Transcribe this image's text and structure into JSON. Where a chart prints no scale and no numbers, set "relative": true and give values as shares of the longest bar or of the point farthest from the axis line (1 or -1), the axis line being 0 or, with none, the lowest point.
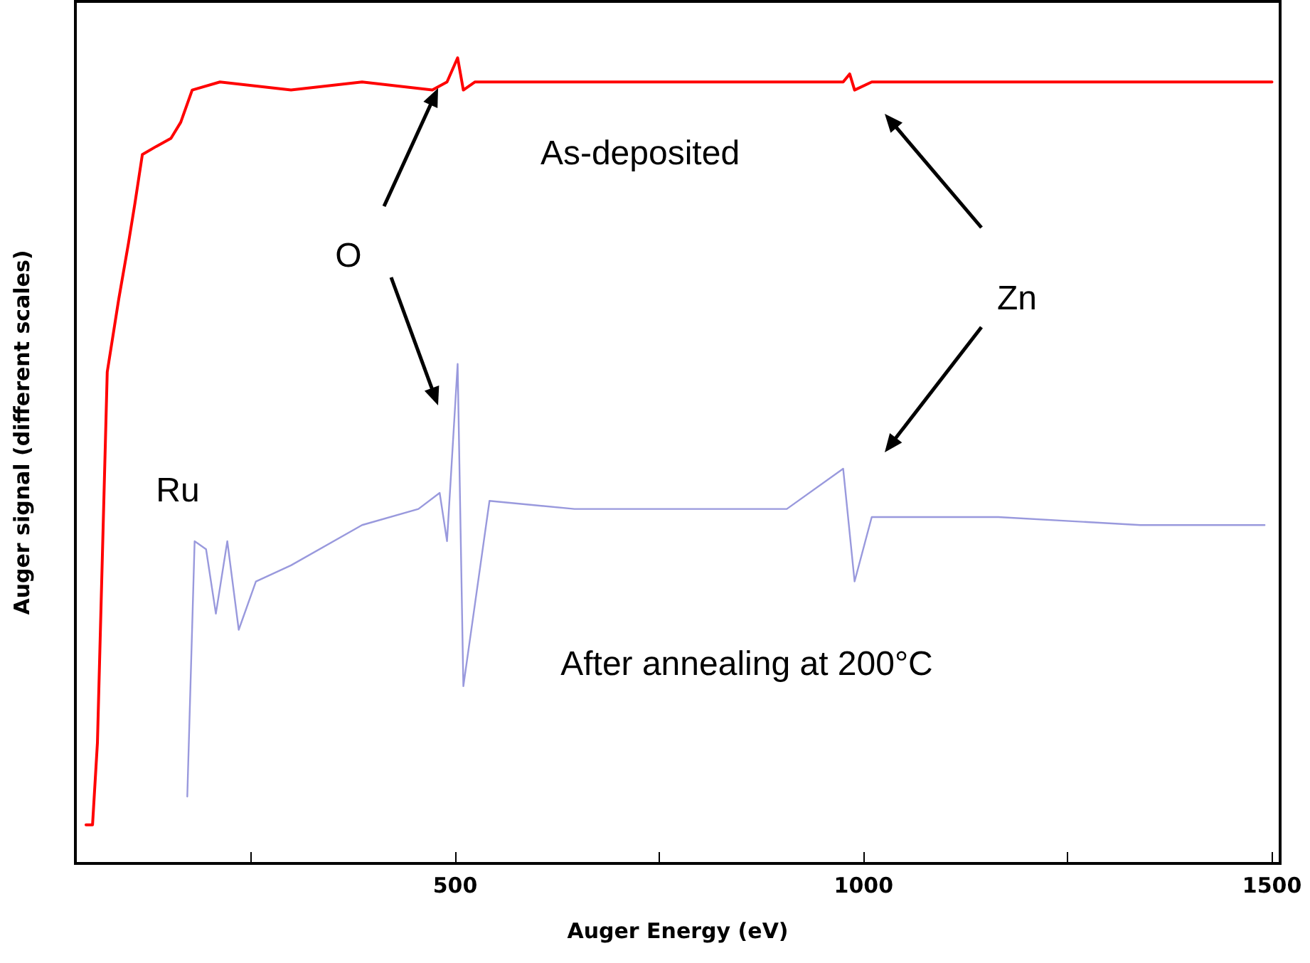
{
  "chart_data": {
    "type": "line",
    "relative": true,
    "xlabel": "Auger Energy (eV)",
    "ylabel": "Auger signal (different scales)",
    "xlim": [
      35,
      1510
    ],
    "xticks": [
      {
        "value": 250,
        "label": null
      },
      500,
      {
        "value": 750,
        "label": null
      },
      1000,
      {
        "value": 1250,
        "label": null
      },
      1500
    ],
    "annotations": [
      "As-deposited",
      "O",
      "Zn",
      "Ru",
      "After annealing at 200°C"
    ],
    "series": [
      {
        "color": "#ff0000",
        "x": [
          48,
          56,
          62,
          74,
          88,
          100,
          108,
          117,
          134,
          152,
          164,
          178,
          212,
          299,
          386,
          472,
          490,
          503,
          510,
          524,
          646,
          819,
          975,
          983,
          989,
          1010,
          1165,
          1339,
          1500
        ],
        "values": [
          0.048,
          0.048,
          0.15,
          0.61,
          0.7,
          0.77,
          0.82,
          0.88,
          0.89,
          0.9,
          0.92,
          0.96,
          0.97,
          0.96,
          0.97,
          0.96,
          0.97,
          1.0,
          0.96,
          0.97,
          0.97,
          0.97,
          0.97,
          0.98,
          0.96,
          0.97,
          0.97,
          0.97,
          0.97
        ]
      },
      {
        "color": "#9999dd",
        "x": [
          172,
          181,
          195,
          207,
          221,
          235,
          256,
          299,
          386,
          455,
          481,
          490,
          503,
          510,
          542,
          646,
          819,
          906,
          975,
          989,
          1010,
          1165,
          1339,
          1491
        ],
        "values": [
          0.083,
          0.4,
          0.39,
          0.31,
          0.4,
          0.29,
          0.35,
          0.37,
          0.42,
          0.44,
          0.46,
          0.4,
          0.62,
          0.22,
          0.45,
          0.44,
          0.44,
          0.44,
          0.49,
          0.35,
          0.43,
          0.43,
          0.42,
          0.42
        ]
      }
    ]
  }
}
